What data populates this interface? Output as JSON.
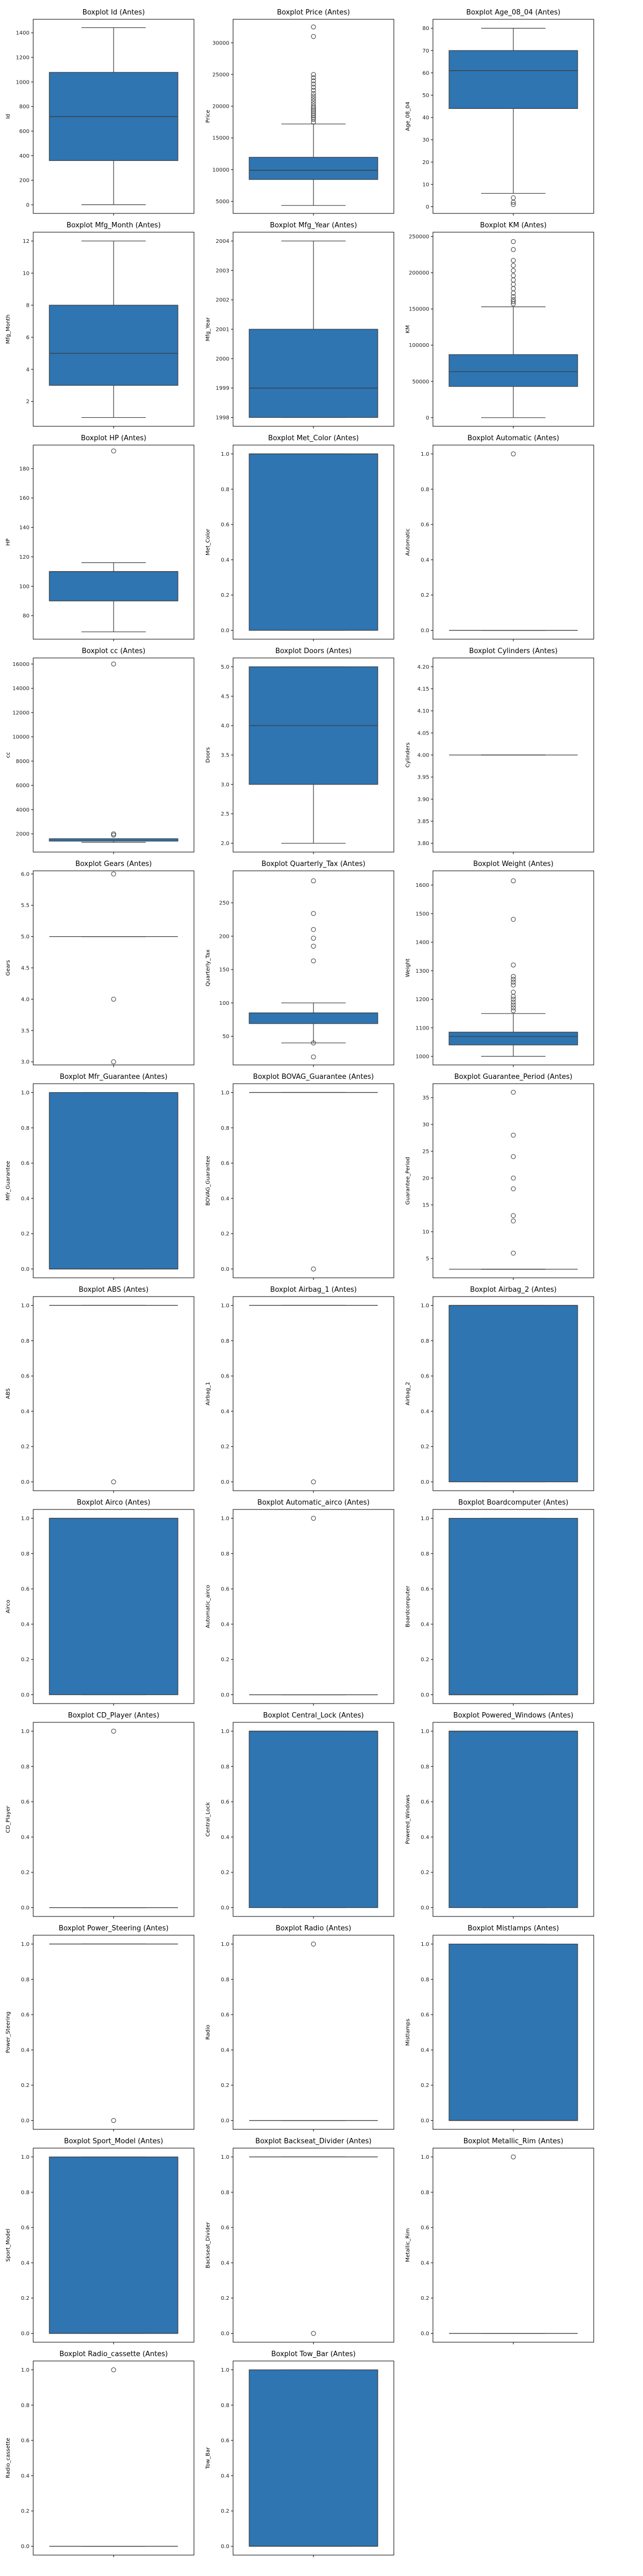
{
  "figure": {
    "suptitle": ""
  },
  "chart_data": [
    {
      "type": "box",
      "title": "Boxplot Id (Antes)",
      "ylabel": "Id",
      "ylim": [
        -70,
        1510
      ],
      "yticks": [
        0,
        200,
        400,
        600,
        800,
        1000,
        1200,
        1400
      ],
      "box": {
        "whislo": 1,
        "q1": 360,
        "med": 718,
        "q3": 1078,
        "whishi": 1442
      },
      "outliers": []
    },
    {
      "type": "box",
      "title": "Boxplot Price (Antes)",
      "ylabel": "Price",
      "ylim": [
        3100,
        33700
      ],
      "yticks": [
        5000,
        10000,
        15000,
        20000,
        25000,
        30000
      ],
      "box": {
        "whislo": 4350,
        "q1": 8450,
        "med": 9900,
        "q3": 11950,
        "whishi": 17200
      },
      "outliers": [
        17500,
        17900,
        18200,
        18500,
        18800,
        19100,
        19400,
        19700,
        20000,
        20400,
        20800,
        21200,
        21600,
        22000,
        22500,
        23000,
        23500,
        24000,
        24500,
        24990,
        31000,
        32500
      ]
    },
    {
      "type": "box",
      "title": "Boxplot Age_08_04 (Antes)",
      "ylabel": "Age_08_04",
      "ylim": [
        -3,
        84
      ],
      "yticks": [
        0,
        10,
        20,
        30,
        40,
        50,
        60,
        70,
        80
      ],
      "box": {
        "whislo": 6,
        "q1": 44,
        "med": 61,
        "q3": 70,
        "whishi": 80
      },
      "outliers": [
        1,
        2,
        4
      ]
    },
    {
      "type": "box",
      "title": "Boxplot Mfg_Month (Antes)",
      "ylabel": "Mfg_Month",
      "ylim": [
        0.45,
        12.55
      ],
      "yticks": [
        2,
        4,
        6,
        8,
        10,
        12
      ],
      "box": {
        "whislo": 1,
        "q1": 3,
        "med": 5,
        "q3": 8,
        "whishi": 12
      },
      "outliers": []
    },
    {
      "type": "box",
      "title": "Boxplot Mfg_Year (Antes)",
      "ylabel": "Mfg_Year",
      "ylim": [
        1997.7,
        2004.3
      ],
      "yticks": [
        1998,
        1999,
        2000,
        2001,
        2002,
        2003,
        2004
      ],
      "box": {
        "whislo": 1998,
        "q1": 1998,
        "med": 1999,
        "q3": 2001,
        "whishi": 2004
      },
      "outliers": []
    },
    {
      "type": "box",
      "title": "Boxplot KM (Antes)",
      "ylabel": "KM",
      "ylim": [
        -12000,
        256000
      ],
      "yticks": [
        0,
        50000,
        100000,
        150000,
        200000,
        250000
      ],
      "box": {
        "whislo": 1,
        "q1": 43000,
        "med": 63400,
        "q3": 87000,
        "whishi": 153000
      },
      "outliers": [
        157000,
        160000,
        163000,
        167000,
        172000,
        178000,
        184000,
        190000,
        196000,
        203000,
        210000,
        217000,
        232000,
        243000
      ]
    },
    {
      "type": "box",
      "title": "Boxplot HP (Antes)",
      "ylabel": "HP",
      "ylim": [
        64,
        196
      ],
      "yticks": [
        80,
        100,
        120,
        140,
        160,
        180
      ],
      "box": {
        "whislo": 69,
        "q1": 90,
        "med": 110,
        "q3": 110,
        "whishi": 116
      },
      "outliers": [
        192
      ]
    },
    {
      "type": "box",
      "title": "Boxplot Met_Color (Antes)",
      "ylabel": "Met_Color",
      "ylim": [
        -0.05,
        1.05
      ],
      "yticks": [
        0,
        0.2,
        0.4,
        0.6,
        0.8,
        1.0
      ],
      "box": {
        "whislo": 0,
        "q1": 0,
        "med": 1,
        "q3": 1,
        "whishi": 1
      },
      "outliers": []
    },
    {
      "type": "box",
      "title": "Boxplot Automatic (Antes)",
      "ylabel": "Automatic",
      "ylim": [
        -0.05,
        1.05
      ],
      "yticks": [
        0,
        0.2,
        0.4,
        0.6,
        0.8,
        1.0
      ],
      "box": {
        "whislo": 0,
        "q1": 0,
        "med": 0,
        "q3": 0,
        "whishi": 0
      },
      "outliers": [
        1
      ]
    },
    {
      "type": "box",
      "title": "Boxplot cc (Antes)",
      "ylabel": "cc",
      "ylim": [
        500,
        16500
      ],
      "yticks": [
        2000,
        4000,
        6000,
        8000,
        10000,
        12000,
        14000,
        16000
      ],
      "box": {
        "whislo": 1300,
        "q1": 1400,
        "med": 1600,
        "q3": 1600,
        "whishi": 1600
      },
      "outliers": [
        1900,
        2000,
        16000
      ]
    },
    {
      "type": "box",
      "title": "Boxplot Doors (Antes)",
      "ylabel": "Doors",
      "ylim": [
        1.85,
        5.15
      ],
      "yticks": [
        2.0,
        2.5,
        3.0,
        3.5,
        4.0,
        4.5,
        5.0
      ],
      "box": {
        "whislo": 2,
        "q1": 3,
        "med": 4,
        "q3": 5,
        "whishi": 5
      },
      "outliers": []
    },
    {
      "type": "box",
      "title": "Boxplot Cylinders (Antes)",
      "ylabel": "Cylinders",
      "ylim": [
        3.78,
        4.22
      ],
      "yticks": [
        3.8,
        3.85,
        3.9,
        3.95,
        4.0,
        4.05,
        4.1,
        4.15,
        4.2
      ],
      "box": {
        "whislo": 4,
        "q1": 4,
        "med": 4,
        "q3": 4,
        "whishi": 4
      },
      "outliers": []
    },
    {
      "type": "box",
      "title": "Boxplot Gears (Antes)",
      "ylabel": "Gears",
      "ylim": [
        2.95,
        6.05
      ],
      "yticks": [
        3.0,
        3.5,
        4.0,
        4.5,
        5.0,
        5.5,
        6.0
      ],
      "box": {
        "whislo": 5,
        "q1": 5,
        "med": 5,
        "q3": 5,
        "whishi": 5
      },
      "outliers": [
        3,
        4,
        6
      ]
    },
    {
      "type": "box",
      "title": "Boxplot Quarterly_Tax (Antes)",
      "ylabel": "Quarterly_Tax",
      "ylim": [
        7,
        298
      ],
      "yticks": [
        50,
        100,
        150,
        200,
        250
      ],
      "box": {
        "whislo": 40,
        "q1": 69,
        "med": 85,
        "q3": 85,
        "whishi": 100
      },
      "outliers": [
        19,
        40,
        163,
        185,
        197,
        210,
        234,
        283
      ]
    },
    {
      "type": "box",
      "title": "Boxplot Weight (Antes)",
      "ylabel": "Weight",
      "ylim": [
        970,
        1650
      ],
      "yticks": [
        1000,
        1100,
        1200,
        1300,
        1400,
        1500,
        1600
      ],
      "box": {
        "whislo": 1000,
        "q1": 1040,
        "med": 1070,
        "q3": 1085,
        "whishi": 1150
      },
      "outliers": [
        1160,
        1170,
        1180,
        1190,
        1200,
        1210,
        1225,
        1250,
        1260,
        1270,
        1280,
        1320,
        1480,
        1615
      ]
    },
    {
      "type": "box",
      "title": "Boxplot Mfr_Guarantee (Antes)",
      "ylabel": "Mfr_Guarantee",
      "ylim": [
        -0.05,
        1.05
      ],
      "yticks": [
        0,
        0.2,
        0.4,
        0.6,
        0.8,
        1.0
      ],
      "box": {
        "whislo": 0,
        "q1": 0,
        "med": 0,
        "q3": 1,
        "whishi": 1
      },
      "outliers": []
    },
    {
      "type": "box",
      "title": "Boxplot BOVAG_Guarantee (Antes)",
      "ylabel": "BOVAG_Guarantee",
      "ylim": [
        -0.05,
        1.05
      ],
      "yticks": [
        0,
        0.2,
        0.4,
        0.6,
        0.8,
        1.0
      ],
      "box": {
        "whislo": 1,
        "q1": 1,
        "med": 1,
        "q3": 1,
        "whishi": 1
      },
      "outliers": [
        0
      ]
    },
    {
      "type": "box",
      "title": "Boxplot Guarantee_Period (Antes)",
      "ylabel": "Guarantee_Period",
      "ylim": [
        1.4,
        37.6
      ],
      "yticks": [
        5,
        10,
        15,
        20,
        25,
        30,
        35
      ],
      "box": {
        "whislo": 3,
        "q1": 3,
        "med": 3,
        "q3": 3,
        "whishi": 3
      },
      "outliers": [
        6,
        12,
        13,
        18,
        20,
        24,
        28,
        36
      ]
    },
    {
      "type": "box",
      "title": "Boxplot ABS (Antes)",
      "ylabel": "ABS",
      "ylim": [
        -0.05,
        1.05
      ],
      "yticks": [
        0,
        0.2,
        0.4,
        0.6,
        0.8,
        1.0
      ],
      "box": {
        "whislo": 1,
        "q1": 1,
        "med": 1,
        "q3": 1,
        "whishi": 1
      },
      "outliers": [
        0
      ]
    },
    {
      "type": "box",
      "title": "Boxplot Airbag_1 (Antes)",
      "ylabel": "Airbag_1",
      "ylim": [
        -0.05,
        1.05
      ],
      "yticks": [
        0,
        0.2,
        0.4,
        0.6,
        0.8,
        1.0
      ],
      "box": {
        "whislo": 1,
        "q1": 1,
        "med": 1,
        "q3": 1,
        "whishi": 1
      },
      "outliers": [
        0
      ]
    },
    {
      "type": "box",
      "title": "Boxplot Airbag_2 (Antes)",
      "ylabel": "Airbag_2",
      "ylim": [
        -0.05,
        1.05
      ],
      "yticks": [
        0,
        0.2,
        0.4,
        0.6,
        0.8,
        1.0
      ],
      "box": {
        "whislo": 0,
        "q1": 0,
        "med": 1,
        "q3": 1,
        "whishi": 1
      },
      "outliers": []
    },
    {
      "type": "box",
      "title": "Boxplot Airco (Antes)",
      "ylabel": "Airco",
      "ylim": [
        -0.05,
        1.05
      ],
      "yticks": [
        0,
        0.2,
        0.4,
        0.6,
        0.8,
        1.0
      ],
      "box": {
        "whislo": 0,
        "q1": 0,
        "med": 1,
        "q3": 1,
        "whishi": 1
      },
      "outliers": []
    },
    {
      "type": "box",
      "title": "Boxplot Automatic_airco (Antes)",
      "ylabel": "Automatic_airco",
      "ylim": [
        -0.05,
        1.05
      ],
      "yticks": [
        0,
        0.2,
        0.4,
        0.6,
        0.8,
        1.0
      ],
      "box": {
        "whislo": 0,
        "q1": 0,
        "med": 0,
        "q3": 0,
        "whishi": 0
      },
      "outliers": [
        1
      ]
    },
    {
      "type": "box",
      "title": "Boxplot Boardcomputer (Antes)",
      "ylabel": "Boardcomputer",
      "ylim": [
        -0.05,
        1.05
      ],
      "yticks": [
        0,
        0.2,
        0.4,
        0.6,
        0.8,
        1.0
      ],
      "box": {
        "whislo": 0,
        "q1": 0,
        "med": 0,
        "q3": 1,
        "whishi": 1
      },
      "outliers": []
    },
    {
      "type": "box",
      "title": "Boxplot CD_Player (Antes)",
      "ylabel": "CD_Player",
      "ylim": [
        -0.05,
        1.05
      ],
      "yticks": [
        0,
        0.2,
        0.4,
        0.6,
        0.8,
        1.0
      ],
      "box": {
        "whislo": 0,
        "q1": 0,
        "med": 0,
        "q3": 0,
        "whishi": 0
      },
      "outliers": [
        1
      ]
    },
    {
      "type": "box",
      "title": "Boxplot Central_Lock (Antes)",
      "ylabel": "Central_Lock",
      "ylim": [
        -0.05,
        1.05
      ],
      "yticks": [
        0,
        0.2,
        0.4,
        0.6,
        0.8,
        1.0
      ],
      "box": {
        "whislo": 0,
        "q1": 0,
        "med": 1,
        "q3": 1,
        "whishi": 1
      },
      "outliers": []
    },
    {
      "type": "box",
      "title": "Boxplot Powered_Windows (Antes)",
      "ylabel": "Powered_Windows",
      "ylim": [
        -0.05,
        1.05
      ],
      "yticks": [
        0,
        0.2,
        0.4,
        0.6,
        0.8,
        1.0
      ],
      "box": {
        "whislo": 0,
        "q1": 0,
        "med": 1,
        "q3": 1,
        "whishi": 1
      },
      "outliers": []
    },
    {
      "type": "box",
      "title": "Boxplot Power_Steering (Antes)",
      "ylabel": "Power_Steering",
      "ylim": [
        -0.05,
        1.05
      ],
      "yticks": [
        0,
        0.2,
        0.4,
        0.6,
        0.8,
        1.0
      ],
      "box": {
        "whislo": 1,
        "q1": 1,
        "med": 1,
        "q3": 1,
        "whishi": 1
      },
      "outliers": [
        0
      ]
    },
    {
      "type": "box",
      "title": "Boxplot Radio (Antes)",
      "ylabel": "Radio",
      "ylim": [
        -0.05,
        1.05
      ],
      "yticks": [
        0,
        0.2,
        0.4,
        0.6,
        0.8,
        1.0
      ],
      "box": {
        "whislo": 0,
        "q1": 0,
        "med": 0,
        "q3": 0,
        "whishi": 0
      },
      "outliers": [
        1
      ]
    },
    {
      "type": "box",
      "title": "Boxplot Mistlamps (Antes)",
      "ylabel": "Mistlamps",
      "ylim": [
        -0.05,
        1.05
      ],
      "yticks": [
        0,
        0.2,
        0.4,
        0.6,
        0.8,
        1.0
      ],
      "box": {
        "whislo": 0,
        "q1": 0,
        "med": 0,
        "q3": 1,
        "whishi": 1
      },
      "outliers": []
    },
    {
      "type": "box",
      "title": "Boxplot Sport_Model (Antes)",
      "ylabel": "Sport_Model",
      "ylim": [
        -0.05,
        1.05
      ],
      "yticks": [
        0,
        0.2,
        0.4,
        0.6,
        0.8,
        1.0
      ],
      "box": {
        "whislo": 0,
        "q1": 0,
        "med": 0,
        "q3": 1,
        "whishi": 1
      },
      "outliers": []
    },
    {
      "type": "box",
      "title": "Boxplot Backseat_Divider (Antes)",
      "ylabel": "Backseat_Divider",
      "ylim": [
        -0.05,
        1.05
      ],
      "yticks": [
        0,
        0.2,
        0.4,
        0.6,
        0.8,
        1.0
      ],
      "box": {
        "whislo": 1,
        "q1": 1,
        "med": 1,
        "q3": 1,
        "whishi": 1
      },
      "outliers": [
        0
      ]
    },
    {
      "type": "box",
      "title": "Boxplot Metallic_Rim (Antes)",
      "ylabel": "Metallic_Rim",
      "ylim": [
        -0.05,
        1.05
      ],
      "yticks": [
        0,
        0.2,
        0.4,
        0.6,
        0.8,
        1.0
      ],
      "box": {
        "whislo": 0,
        "q1": 0,
        "med": 0,
        "q3": 0,
        "whishi": 0
      },
      "outliers": [
        1
      ]
    },
    {
      "type": "box",
      "title": "Boxplot Radio_cassette (Antes)",
      "ylabel": "Radio_cassette",
      "ylim": [
        -0.05,
        1.05
      ],
      "yticks": [
        0,
        0.2,
        0.4,
        0.6,
        0.8,
        1.0
      ],
      "box": {
        "whislo": 0,
        "q1": 0,
        "med": 0,
        "q3": 0,
        "whishi": 0
      },
      "outliers": [
        1
      ]
    },
    {
      "type": "box",
      "title": "Boxplot Tow_Bar (Antes)",
      "ylabel": "Tow_Bar",
      "ylim": [
        -0.05,
        1.05
      ],
      "yticks": [
        0,
        0.2,
        0.4,
        0.6,
        0.8,
        1.0
      ],
      "box": {
        "whislo": 0,
        "q1": 0,
        "med": 0,
        "q3": 1,
        "whishi": 1
      },
      "outliers": []
    }
  ],
  "style": {
    "box_color": "#2E75B2",
    "line_color": "#3D3D3D",
    "axis_color": "#000000",
    "tick_text_color": "#222222"
  }
}
